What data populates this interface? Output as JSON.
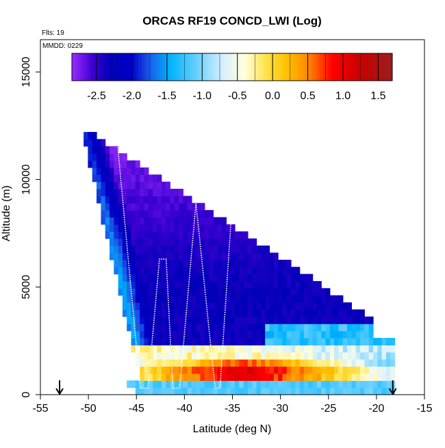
{
  "chart_data": {
    "type": "heatmap",
    "title": "ORCAS RF19 CONCD_LWI (Log)",
    "annotations": {
      "flights": "Flts: 19",
      "date": "MMDD: 0229"
    },
    "xlabel": "Latitude (deg N)",
    "ylabel": "Altitude (m)",
    "xlim": [
      -55,
      -15
    ],
    "ylim": [
      0,
      16500
    ],
    "x_ticks": [
      -55,
      -50,
      -45,
      -40,
      -35,
      -30,
      -25,
      -20,
      -15
    ],
    "y_ticks": [
      0,
      5000,
      10000,
      15000
    ],
    "colorbar": {
      "min": -2.85,
      "max": 1.7,
      "ticks": [
        -2.5,
        -2.0,
        -1.5,
        -1.0,
        -0.5,
        0.0,
        0.5,
        1.0,
        1.5
      ],
      "tick_labels": [
        "-2.5",
        "-2.0",
        "-1.5",
        "-1.0",
        "-0.5",
        "0.0",
        "0.5",
        "1.0",
        "1.5"
      ],
      "stops": [
        {
          "v": -2.85,
          "c": "#9b2cff"
        },
        {
          "v": -2.55,
          "c": "#3a00d0"
        },
        {
          "v": -2.3,
          "c": "#0000b8"
        },
        {
          "v": -2.0,
          "c": "#0000c8"
        },
        {
          "v": -1.75,
          "c": "#1a5ae8"
        },
        {
          "v": -1.45,
          "c": "#00b4ff"
        },
        {
          "v": -1.05,
          "c": "#6fd2ff"
        },
        {
          "v": -0.7,
          "c": "#d8f0ff"
        },
        {
          "v": -0.4,
          "c": "#ffffdc"
        },
        {
          "v": -0.1,
          "c": "#ffe34d"
        },
        {
          "v": 0.2,
          "c": "#ffc000"
        },
        {
          "v": 0.5,
          "c": "#ff8a00"
        },
        {
          "v": 0.85,
          "c": "#ff0000"
        },
        {
          "v": 1.25,
          "c": "#c80000"
        },
        {
          "v": 1.7,
          "c": "#9b1e1e"
        }
      ]
    },
    "flight_track": [
      [
        -47.0,
        11800
      ],
      [
        -44.6,
        300
      ],
      [
        -43.8,
        300
      ],
      [
        -42.6,
        6300
      ],
      [
        -41.9,
        6300
      ],
      [
        -41.2,
        300
      ],
      [
        -40.5,
        300
      ],
      [
        -38.8,
        8900
      ],
      [
        -36.8,
        300
      ],
      [
        -36.3,
        300
      ],
      [
        -35.1,
        8400
      ]
    ],
    "end_markers": [
      -53.0,
      -18.3
    ]
  }
}
